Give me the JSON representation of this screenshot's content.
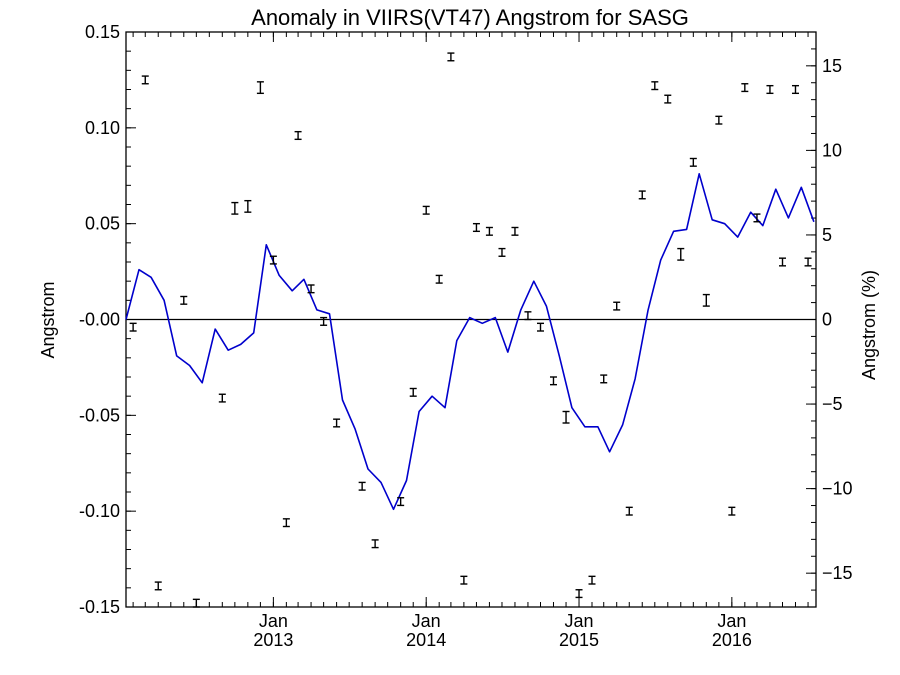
{
  "chart_data": {
    "type": "line",
    "title": "Anomaly in VIIRS(VT47) Angstrom for SASG",
    "xlabel": "",
    "ylabel": "Angstrom",
    "ylabel_right": "Angstrom (%)",
    "x_range": [
      "2012-01-15",
      "2016-07-20"
    ],
    "ylim": [
      -0.15,
      0.15
    ],
    "ylim_right": [
      -17,
      17
    ],
    "x_ticks": [
      {
        "date": "2013-01-01",
        "month": "Jan",
        "year": "2013"
      },
      {
        "date": "2014-01-01",
        "month": "Jan",
        "year": "2014"
      },
      {
        "date": "2015-01-01",
        "month": "Jan",
        "year": "2015"
      },
      {
        "date": "2016-01-01",
        "month": "Jan",
        "year": "2016"
      }
    ],
    "y_ticks": [
      "0.15",
      "0.10",
      "0.05",
      "-0.00",
      "-0.05",
      "-0.10",
      "-0.15"
    ],
    "y_ticks_right": [
      "15",
      "10",
      "5",
      "0",
      "−5",
      "−10",
      "−15"
    ],
    "zero_line": true,
    "grid": false,
    "colors": {
      "line": "#0000cc",
      "points": "#000000",
      "axes": "#000000"
    },
    "series": [
      {
        "style": "line",
        "x": [
          "2012-01-15",
          "2012-02-15",
          "2012-03-15",
          "2012-04-15",
          "2012-05-15",
          "2012-06-15",
          "2012-07-15",
          "2012-08-15",
          "2012-09-15",
          "2012-10-15",
          "2012-11-15",
          "2012-12-15",
          "2013-01-15",
          "2013-02-15",
          "2013-03-15",
          "2013-04-15",
          "2013-05-15",
          "2013-06-15",
          "2013-07-15",
          "2013-08-15",
          "2013-09-15",
          "2013-10-15",
          "2013-11-15",
          "2013-12-15",
          "2014-01-15",
          "2014-02-15",
          "2014-03-15",
          "2014-04-15",
          "2014-05-15",
          "2014-06-15",
          "2014-07-15",
          "2014-08-15",
          "2014-09-15",
          "2014-10-15",
          "2014-11-15",
          "2014-12-15",
          "2015-01-15",
          "2015-02-15",
          "2015-03-15",
          "2015-04-15",
          "2015-05-15",
          "2015-06-15",
          "2015-07-15",
          "2015-08-15",
          "2015-09-15",
          "2015-10-15",
          "2015-11-15",
          "2015-12-15",
          "2016-01-15",
          "2016-02-15",
          "2016-03-15",
          "2016-04-15",
          "2016-05-15",
          "2016-06-15",
          "2016-07-15"
        ],
        "y": [
          0.0,
          0.026,
          0.022,
          0.01,
          -0.019,
          -0.024,
          -0.033,
          -0.005,
          -0.016,
          -0.013,
          -0.007,
          0.039,
          0.023,
          0.015,
          0.021,
          0.005,
          0.003,
          -0.042,
          -0.057,
          -0.078,
          -0.085,
          -0.099,
          -0.084,
          -0.048,
          -0.04,
          -0.046,
          -0.011,
          0.001,
          -0.002,
          0.001,
          -0.017,
          0.005,
          0.02,
          0.007,
          -0.019,
          -0.046,
          -0.056,
          -0.056,
          -0.069,
          -0.055,
          -0.031,
          0.005,
          0.031,
          0.046,
          0.047,
          0.076,
          0.052,
          0.05,
          0.043,
          0.056,
          0.049,
          0.068,
          0.053,
          0.069,
          0.051
        ]
      },
      {
        "style": "errorbar",
        "x": [
          "2012-02-01",
          "2012-03-01",
          "2012-04-01",
          "2012-06-01",
          "2012-07-01",
          "2012-09-01",
          "2012-10-01",
          "2012-11-01",
          "2012-12-01",
          "2013-01-01",
          "2013-02-01",
          "2013-03-01",
          "2013-04-01",
          "2013-05-01",
          "2013-06-01",
          "2013-08-01",
          "2013-09-01",
          "2013-11-01",
          "2013-12-01",
          "2014-01-01",
          "2014-02-01",
          "2014-03-01",
          "2014-04-01",
          "2014-05-01",
          "2014-06-01",
          "2014-07-01",
          "2014-08-01",
          "2014-09-01",
          "2014-10-01",
          "2014-11-01",
          "2014-12-01",
          "2015-01-01",
          "2015-02-01",
          "2015-03-01",
          "2015-04-01",
          "2015-05-01",
          "2015-06-01",
          "2015-07-01",
          "2015-08-01",
          "2015-09-01",
          "2015-10-01",
          "2015-11-01",
          "2015-12-01",
          "2016-01-01",
          "2016-02-01",
          "2016-03-01",
          "2016-04-01",
          "2016-05-01",
          "2016-06-01",
          "2016-07-01"
        ],
        "y": [
          -0.004,
          0.125,
          -0.139,
          0.01,
          -0.148,
          -0.041,
          0.058,
          0.059,
          0.121,
          0.031,
          -0.106,
          0.096,
          0.016,
          -0.001,
          -0.054,
          -0.087,
          -0.117,
          -0.095,
          -0.038,
          0.057,
          0.021,
          0.137,
          -0.136,
          0.048,
          0.046,
          0.035,
          0.046,
          0.002,
          -0.004,
          -0.032,
          -0.051,
          -0.143,
          -0.136,
          -0.031,
          0.007,
          -0.1,
          0.065,
          0.122,
          0.115,
          0.034,
          0.082,
          0.01,
          0.104,
          -0.1,
          0.121,
          0.053,
          0.12,
          0.03,
          0.12,
          0.03
        ],
        "err": [
          0.002,
          0.002,
          0.002,
          0.002,
          0.002,
          0.002,
          0.003,
          0.003,
          0.003,
          0.002,
          0.002,
          0.002,
          0.002,
          0.002,
          0.002,
          0.002,
          0.002,
          0.002,
          0.002,
          0.002,
          0.002,
          0.002,
          0.002,
          0.002,
          0.002,
          0.002,
          0.002,
          0.002,
          0.002,
          0.002,
          0.003,
          0.002,
          0.002,
          0.002,
          0.002,
          0.002,
          0.002,
          0.002,
          0.002,
          0.003,
          0.002,
          0.003,
          0.002,
          0.002,
          0.002,
          0.002,
          0.002,
          0.002,
          0.002,
          0.002
        ]
      }
    ]
  }
}
